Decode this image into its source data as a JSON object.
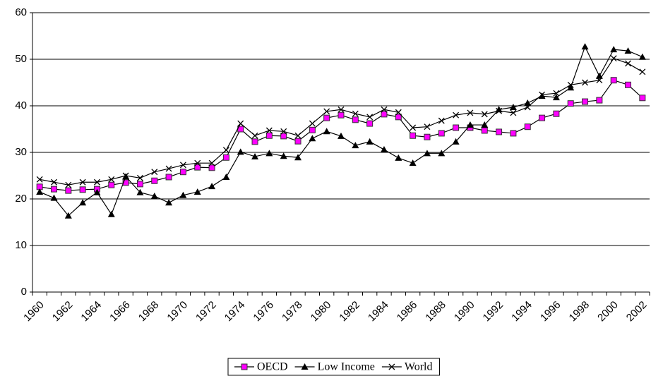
{
  "chart_data": {
    "type": "line",
    "categories": [
      "1960",
      null,
      "1962",
      null,
      "1964",
      null,
      "1966",
      null,
      "1968",
      null,
      "1970",
      null,
      "1972",
      null,
      "1974",
      null,
      "1976",
      null,
      "1978",
      null,
      "1980",
      null,
      "1982",
      null,
      "1984",
      null,
      "1986",
      null,
      "1988",
      null,
      "1990",
      null,
      "1992",
      null,
      "1994",
      null,
      "1996",
      null,
      "1998",
      null,
      "2000",
      null,
      "2002"
    ],
    "series": [
      {
        "name": "OECD",
        "color": "#ff00ff",
        "marker": "square",
        "values": [
          22.6,
          22.1,
          21.8,
          22.0,
          22.1,
          23.0,
          23.5,
          23.2,
          23.9,
          24.7,
          25.8,
          26.8,
          26.7,
          28.9,
          35.0,
          32.3,
          33.6,
          33.5,
          32.4,
          34.8,
          37.4,
          38.0,
          37.0,
          36.2,
          38.2,
          37.6,
          33.6,
          33.3,
          34.1,
          35.3,
          35.3,
          34.7,
          34.4,
          34.1,
          35.5,
          37.4,
          38.3,
          40.5,
          40.9,
          41.2,
          45.5,
          44.5,
          41.7
        ]
      },
      {
        "name": "Low Income",
        "color": "#000000",
        "marker": "triangle",
        "values": [
          21.5,
          20.2,
          16.4,
          19.2,
          21.4,
          16.7,
          24.8,
          21.4,
          20.6,
          19.2,
          20.8,
          21.5,
          22.7,
          24.7,
          30.1,
          29.1,
          29.8,
          29.2,
          28.9,
          33.0,
          34.5,
          33.5,
          31.5,
          32.3,
          30.6,
          28.8,
          27.7,
          29.8,
          29.8,
          32.3,
          35.9,
          35.9,
          39.2,
          39.7,
          40.6,
          42.1,
          41.8,
          43.9,
          52.7,
          46.4,
          52.1,
          51.8,
          50.5
        ]
      },
      {
        "name": "World",
        "color": "#000000",
        "marker": "x",
        "values": [
          24.2,
          23.6,
          23.0,
          23.6,
          23.6,
          24.2,
          25.0,
          24.5,
          25.8,
          26.5,
          27.3,
          27.7,
          27.7,
          30.5,
          36.2,
          33.6,
          34.7,
          34.5,
          33.6,
          36.2,
          38.8,
          39.2,
          38.3,
          37.6,
          39.2,
          38.6,
          35.3,
          35.5,
          36.8,
          38.0,
          38.5,
          38.2,
          38.9,
          38.5,
          39.7,
          42.4,
          42.7,
          44.5,
          45.0,
          45.5,
          50.2,
          49.1,
          47.3
        ]
      }
    ],
    "ylim": [
      0,
      60
    ],
    "yticks": [
      0,
      10,
      20,
      30,
      40,
      50,
      60
    ],
    "grid": true,
    "legend": "bottom"
  }
}
